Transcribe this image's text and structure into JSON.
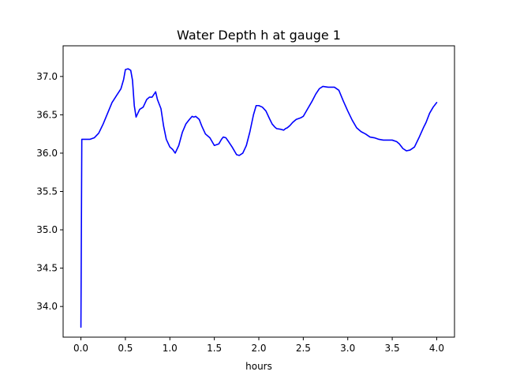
{
  "chart_data": {
    "type": "line",
    "title": "Water Depth h at gauge 1",
    "xlabel": "hours",
    "ylabel": "",
    "xlim": [
      -0.2,
      4.2
    ],
    "ylim": [
      33.6,
      37.4
    ],
    "xticks": [
      0.0,
      0.5,
      1.0,
      1.5,
      2.0,
      2.5,
      3.0,
      3.5,
      4.0
    ],
    "xtick_labels": [
      "0.0",
      "0.5",
      "1.0",
      "1.5",
      "2.0",
      "2.5",
      "3.0",
      "3.5",
      "4.0"
    ],
    "yticks": [
      34.0,
      34.5,
      35.0,
      35.5,
      36.0,
      36.5,
      37.0
    ],
    "ytick_labels": [
      "34.0",
      "34.5",
      "35.0",
      "35.5",
      "36.0",
      "36.5",
      "37.0"
    ],
    "grid": false,
    "series": [
      {
        "color": "#0000ff",
        "x": [
          0,
          0.01,
          0.05,
          0.1,
          0.15,
          0.2,
          0.25,
          0.3,
          0.35,
          0.4,
          0.45,
          0.48,
          0.5,
          0.53,
          0.56,
          0.58,
          0.6,
          0.62,
          0.64,
          0.66,
          0.7,
          0.74,
          0.77,
          0.8,
          0.84,
          0.86,
          0.9,
          0.93,
          0.96,
          1.0,
          1.03,
          1.06,
          1.1,
          1.14,
          1.18,
          1.22,
          1.25,
          1.27,
          1.29,
          1.31,
          1.33,
          1.36,
          1.4,
          1.45,
          1.5,
          1.55,
          1.58,
          1.6,
          1.63,
          1.66,
          1.7,
          1.75,
          1.78,
          1.82,
          1.86,
          1.9,
          1.94,
          1.97,
          2.0,
          2.04,
          2.08,
          2.12,
          2.15,
          2.18,
          2.2,
          2.25,
          2.28,
          2.3,
          2.32,
          2.35,
          2.38,
          2.42,
          2.47,
          2.5,
          2.55,
          2.6,
          2.64,
          2.68,
          2.72,
          2.78,
          2.85,
          2.9,
          2.95,
          3.0,
          3.05,
          3.1,
          3.15,
          3.2,
          3.25,
          3.3,
          3.35,
          3.4,
          3.45,
          3.5,
          3.55,
          3.58,
          3.62,
          3.66,
          3.7,
          3.75,
          3.8,
          3.85,
          3.88,
          3.92,
          3.96,
          4.0
        ],
        "y": [
          33.73,
          36.18,
          36.18,
          36.18,
          36.2,
          36.26,
          36.38,
          36.52,
          36.66,
          36.75,
          36.84,
          36.96,
          37.09,
          37.1,
          37.08,
          36.95,
          36.62,
          36.47,
          36.52,
          36.57,
          36.6,
          36.7,
          36.73,
          36.73,
          36.8,
          36.7,
          36.58,
          36.35,
          36.18,
          36.08,
          36.05,
          36.0,
          36.1,
          36.27,
          36.38,
          36.44,
          36.48,
          36.47,
          36.48,
          36.46,
          36.44,
          36.35,
          36.25,
          36.2,
          36.1,
          36.12,
          36.18,
          36.21,
          36.2,
          36.15,
          36.08,
          35.98,
          35.97,
          36.0,
          36.1,
          36.28,
          36.5,
          36.62,
          36.62,
          36.6,
          36.55,
          36.45,
          36.38,
          36.34,
          36.32,
          36.31,
          36.3,
          36.32,
          36.33,
          36.36,
          36.4,
          36.44,
          36.46,
          36.48,
          36.58,
          36.68,
          36.77,
          36.84,
          36.87,
          36.86,
          36.86,
          36.82,
          36.68,
          36.55,
          36.43,
          36.33,
          36.28,
          36.25,
          36.21,
          36.2,
          36.18,
          36.17,
          36.17,
          36.17,
          36.15,
          36.12,
          36.06,
          36.03,
          36.04,
          36.08,
          36.2,
          36.33,
          36.4,
          36.52,
          36.6,
          36.66
        ]
      }
    ]
  }
}
